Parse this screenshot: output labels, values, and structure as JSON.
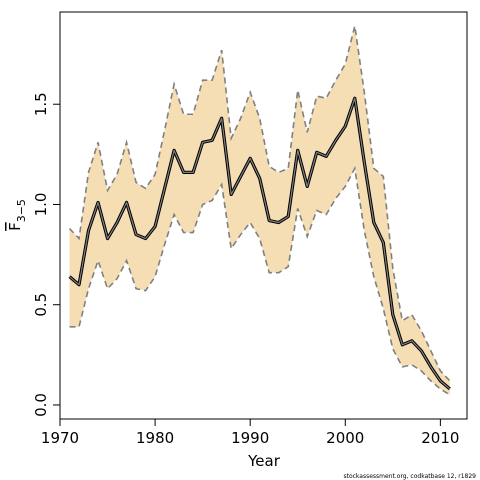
{
  "chart_data": {
    "type": "area",
    "xlabel": "Year",
    "ylabel_main": "F",
    "ylabel_sub": "3−5",
    "footnote": "stockassessment.org, codkatbase 12, r1829",
    "xlim": [
      1970,
      2012.8
    ],
    "ylim": [
      -0.07,
      1.96
    ],
    "xticks": [
      1970,
      1980,
      1990,
      2000,
      2010
    ],
    "yticks": [
      0.0,
      0.5,
      1.0,
      1.5
    ],
    "ytick_labels": [
      "0.0",
      "0.5",
      "1.0",
      "1.5"
    ],
    "years": [
      1971,
      1972,
      1973,
      1974,
      1975,
      1976,
      1977,
      1978,
      1979,
      1980,
      1981,
      1982,
      1983,
      1984,
      1985,
      1986,
      1987,
      1988,
      1989,
      1990,
      1991,
      1992,
      1993,
      1994,
      1995,
      1996,
      1997,
      1998,
      1999,
      2000,
      2001,
      2002,
      2003,
      2004,
      2005,
      2006,
      2007,
      2008,
      2009,
      2010,
      2011
    ],
    "estimate": [
      0.64,
      0.6,
      0.87,
      1.01,
      0.83,
      0.91,
      1.01,
      0.85,
      0.83,
      0.89,
      1.08,
      1.27,
      1.16,
      1.16,
      1.31,
      1.32,
      1.43,
      1.05,
      1.14,
      1.23,
      1.13,
      0.92,
      0.91,
      0.94,
      1.27,
      1.09,
      1.26,
      1.24,
      1.32,
      1.39,
      1.53,
      1.21,
      0.91,
      0.81,
      0.45,
      0.3,
      0.32,
      0.27,
      0.19,
      0.12,
      0.08
    ],
    "upper": [
      0.88,
      0.83,
      1.16,
      1.31,
      1.07,
      1.15,
      1.31,
      1.11,
      1.08,
      1.15,
      1.37,
      1.6,
      1.45,
      1.45,
      1.62,
      1.62,
      1.77,
      1.33,
      1.43,
      1.56,
      1.43,
      1.19,
      1.16,
      1.18,
      1.57,
      1.36,
      1.54,
      1.53,
      1.62,
      1.7,
      1.89,
      1.56,
      1.18,
      1.14,
      0.68,
      0.42,
      0.45,
      0.37,
      0.27,
      0.17,
      0.12
    ],
    "lower": [
      0.39,
      0.39,
      0.58,
      0.72,
      0.58,
      0.63,
      0.72,
      0.58,
      0.57,
      0.64,
      0.8,
      0.95,
      0.86,
      0.86,
      1.0,
      1.02,
      1.1,
      0.78,
      0.85,
      0.91,
      0.83,
      0.66,
      0.66,
      0.69,
      0.98,
      0.84,
      0.97,
      0.95,
      1.03,
      1.09,
      1.18,
      0.87,
      0.64,
      0.48,
      0.28,
      0.19,
      0.2,
      0.17,
      0.12,
      0.08,
      0.05
    ]
  },
  "colors": {
    "band_fill": "#f5deb3",
    "band_edge": "#808080",
    "estimate_outline": "#000000",
    "estimate_core": "#808080"
  }
}
